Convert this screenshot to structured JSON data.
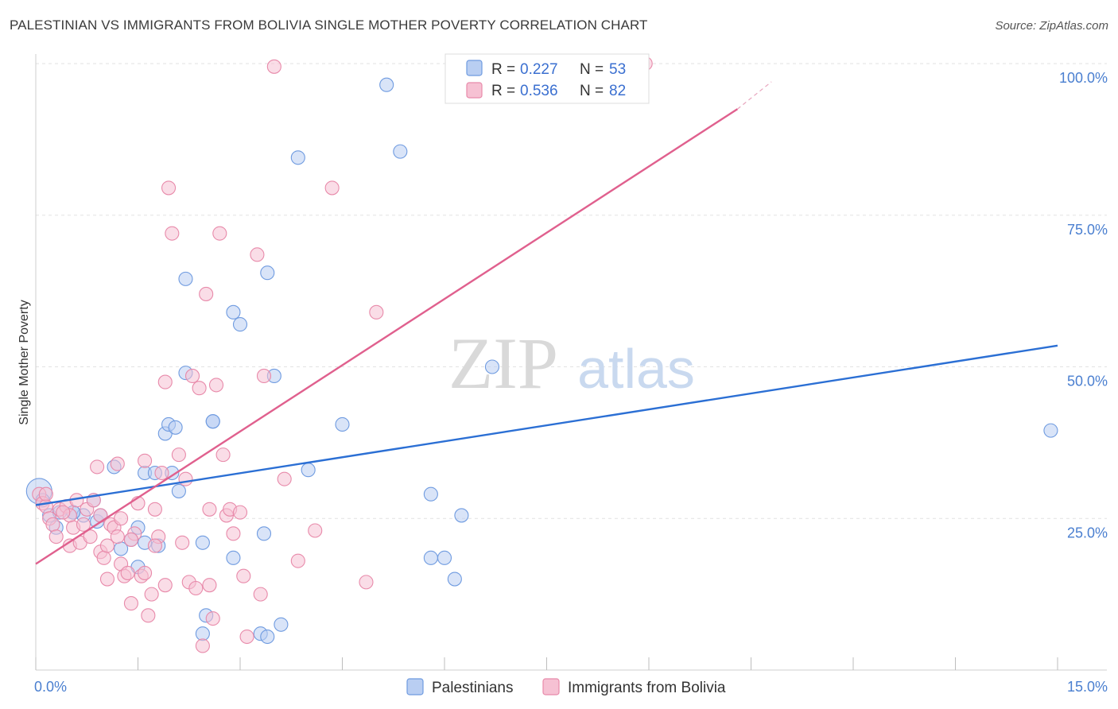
{
  "title": "PALESTINIAN VS IMMIGRANTS FROM BOLIVIA SINGLE MOTHER POVERTY CORRELATION CHART",
  "source": "Source: ZipAtlas.com",
  "watermark": {
    "zip": "ZIP",
    "atlas": "atlas"
  },
  "chart_data": {
    "type": "scatter",
    "title": "PALESTINIAN VS IMMIGRANTS FROM BOLIVIA SINGLE MOTHER POVERTY CORRELATION CHART",
    "xlabel": "",
    "ylabel": "Single Mother Poverty",
    "xlim": [
      0,
      15
    ],
    "ylim": [
      0,
      100
    ],
    "x_tick_labels": [
      "0.0%",
      "15.0%"
    ],
    "y_tick_labels": [
      "25.0%",
      "50.0%",
      "75.0%",
      "100.0%"
    ],
    "y_ticks": [
      25,
      50,
      75,
      100
    ],
    "grid": true,
    "legend_position": "top-center",
    "series": [
      {
        "name": "Palestinians",
        "color": "#6f9be0",
        "fill": "#b9cef2",
        "R": "0.227",
        "N": "53",
        "trend": {
          "x": [
            0,
            15
          ],
          "y": [
            27.2,
            53.5
          ]
        },
        "points": [
          [
            0.05,
            29.5
          ],
          [
            0.1,
            28.0
          ],
          [
            0.2,
            25.5
          ],
          [
            0.3,
            23.5
          ],
          [
            0.35,
            26.0
          ],
          [
            0.55,
            26.0
          ],
          [
            0.7,
            25.5
          ],
          [
            0.85,
            28.0
          ],
          [
            0.9,
            24.5
          ],
          [
            0.95,
            25.5
          ],
          [
            1.15,
            33.5
          ],
          [
            1.25,
            20.0
          ],
          [
            1.4,
            21.5
          ],
          [
            1.5,
            17.0
          ],
          [
            1.5,
            23.5
          ],
          [
            1.6,
            32.5
          ],
          [
            1.6,
            21.0
          ],
          [
            1.75,
            32.5
          ],
          [
            1.8,
            20.5
          ],
          [
            1.9,
            39.0
          ],
          [
            1.95,
            40.5
          ],
          [
            2.05,
            40.0
          ],
          [
            2.1,
            29.5
          ],
          [
            2.2,
            64.5
          ],
          [
            2.2,
            49.0
          ],
          [
            2.45,
            21.0
          ],
          [
            2.5,
            9.0
          ],
          [
            2.6,
            41.0
          ],
          [
            2.6,
            41.0
          ],
          [
            2.9,
            59.0
          ],
          [
            2.9,
            18.5
          ],
          [
            3.0,
            57.0
          ],
          [
            3.3,
            6.0
          ],
          [
            3.35,
            22.5
          ],
          [
            3.4,
            65.5
          ],
          [
            3.4,
            5.5
          ],
          [
            3.5,
            48.5
          ],
          [
            3.6,
            7.5
          ],
          [
            3.85,
            84.5
          ],
          [
            4.0,
            33.0
          ],
          [
            4.5,
            40.5
          ],
          [
            5.15,
            96.5
          ],
          [
            5.35,
            85.5
          ],
          [
            5.8,
            29.0
          ],
          [
            5.8,
            18.5
          ],
          [
            6.0,
            18.5
          ],
          [
            6.15,
            15.0
          ],
          [
            6.25,
            25.5
          ],
          [
            6.7,
            50.0
          ],
          [
            14.9,
            39.5
          ],
          [
            2.45,
            6.0
          ],
          [
            0.55,
            26.0
          ],
          [
            2.0,
            32.5
          ]
        ]
      },
      {
        "name": "Immigrants from Bolivia",
        "color": "#e88aaa",
        "fill": "#f6c1d3",
        "R": "0.536",
        "N": "82",
        "trend": {
          "x": [
            0,
            10.3
          ],
          "y": [
            17.5,
            92.5
          ]
        },
        "trend_extension": {
          "x": [
            10.3,
            10.8
          ],
          "y": [
            92.5,
            97.0
          ]
        },
        "points": [
          [
            0.05,
            29.0
          ],
          [
            0.1,
            27.5
          ],
          [
            0.15,
            27.0
          ],
          [
            0.2,
            25.0
          ],
          [
            0.25,
            24.0
          ],
          [
            0.3,
            22.0
          ],
          [
            0.35,
            26.5
          ],
          [
            0.45,
            27.0
          ],
          [
            0.5,
            25.5
          ],
          [
            0.5,
            20.5
          ],
          [
            0.55,
            23.5
          ],
          [
            0.6,
            28.0
          ],
          [
            0.65,
            21.0
          ],
          [
            0.7,
            24.0
          ],
          [
            0.75,
            26.5
          ],
          [
            0.8,
            22.0
          ],
          [
            0.85,
            28.0
          ],
          [
            0.9,
            33.5
          ],
          [
            0.95,
            19.5
          ],
          [
            1.0,
            18.5
          ],
          [
            1.05,
            20.5
          ],
          [
            1.1,
            24.0
          ],
          [
            1.15,
            23.5
          ],
          [
            1.2,
            22.0
          ],
          [
            1.25,
            25.0
          ],
          [
            1.25,
            17.5
          ],
          [
            1.3,
            15.5
          ],
          [
            1.35,
            16.0
          ],
          [
            1.4,
            11.0
          ],
          [
            1.45,
            22.5
          ],
          [
            1.5,
            27.5
          ],
          [
            1.55,
            15.5
          ],
          [
            1.6,
            34.5
          ],
          [
            1.65,
            9.0
          ],
          [
            1.7,
            12.5
          ],
          [
            1.75,
            26.5
          ],
          [
            1.8,
            22.0
          ],
          [
            1.85,
            32.5
          ],
          [
            1.9,
            14.0
          ],
          [
            1.9,
            47.5
          ],
          [
            1.95,
            79.5
          ],
          [
            2.0,
            72.0
          ],
          [
            2.1,
            35.5
          ],
          [
            2.2,
            31.5
          ],
          [
            2.25,
            14.5
          ],
          [
            2.3,
            48.5
          ],
          [
            2.35,
            13.5
          ],
          [
            2.4,
            46.5
          ],
          [
            2.5,
            62.0
          ],
          [
            2.55,
            14.0
          ],
          [
            2.6,
            8.5
          ],
          [
            2.65,
            47.0
          ],
          [
            2.7,
            72.0
          ],
          [
            2.75,
            35.5
          ],
          [
            2.8,
            25.5
          ],
          [
            2.85,
            26.5
          ],
          [
            2.9,
            22.5
          ],
          [
            3.0,
            26.0
          ],
          [
            3.05,
            15.5
          ],
          [
            3.1,
            5.5
          ],
          [
            3.25,
            68.5
          ],
          [
            3.3,
            12.5
          ],
          [
            3.35,
            48.5
          ],
          [
            3.5,
            99.5
          ],
          [
            3.65,
            31.5
          ],
          [
            3.85,
            18.0
          ],
          [
            4.1,
            23.0
          ],
          [
            4.35,
            79.5
          ],
          [
            4.85,
            14.5
          ],
          [
            5.0,
            59.0
          ],
          [
            8.95,
            100.0
          ],
          [
            2.45,
            4.0
          ],
          [
            1.05,
            15.0
          ],
          [
            1.6,
            16.0
          ],
          [
            1.4,
            21.5
          ],
          [
            0.15,
            29.0
          ],
          [
            0.4,
            26.0
          ],
          [
            2.15,
            21.0
          ],
          [
            1.2,
            34.0
          ],
          [
            0.95,
            25.5
          ],
          [
            1.75,
            20.5
          ],
          [
            2.55,
            26.5
          ]
        ]
      }
    ]
  },
  "legend": {
    "r_label": "R =",
    "n_label": "N =",
    "entries": [
      {
        "r": "0.227",
        "n": "53",
        "color": "#6f9be0",
        "fill": "#b9cef2"
      },
      {
        "r": "0.536",
        "n": "82",
        "color": "#e88aaa",
        "fill": "#f6c1d3"
      }
    ]
  },
  "bottom_legend": [
    "Palestinians",
    "Immigrants from Bolivia"
  ]
}
